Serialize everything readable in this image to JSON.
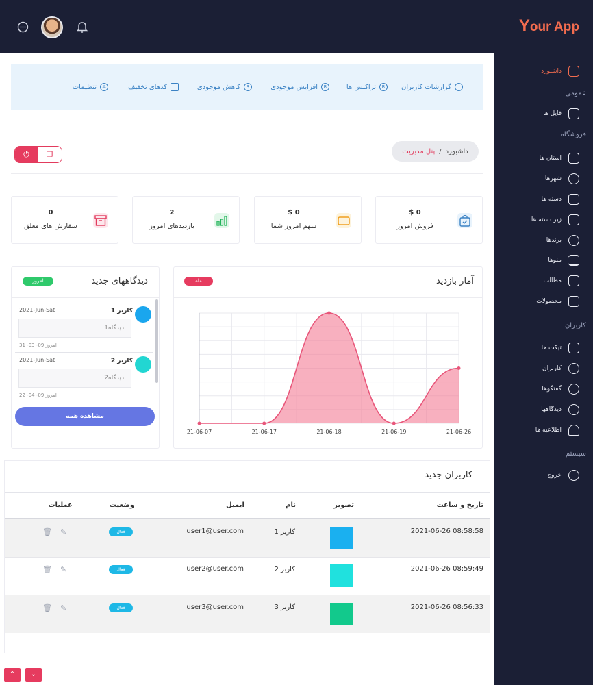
{
  "app": {
    "logo_initial": "Y",
    "logo_rest": "our App"
  },
  "header": {
    "chat_icon": "chat-icon",
    "bell_icon": "bell-icon"
  },
  "sidebar": {
    "items": [
      {
        "label": "داشبورد",
        "icon": "home-icon",
        "active": true
      },
      {
        "label": "فایل ها",
        "icon": "folder-icon"
      },
      {
        "label": "استان ها",
        "icon": "square-icon"
      },
      {
        "label": "شهرها",
        "icon": "pie-icon"
      },
      {
        "label": "دسته ها",
        "icon": "grid-icon"
      },
      {
        "label": "زیر دسته ها",
        "icon": "layout-icon"
      },
      {
        "label": "برندها",
        "icon": "check-circle-icon"
      },
      {
        "label": "منوها",
        "icon": "list-icon"
      },
      {
        "label": "مطالب",
        "icon": "edit-icon"
      },
      {
        "label": "محصولات",
        "icon": "puzzle-icon"
      },
      {
        "label": "تیکت ها",
        "icon": "ticket-icon"
      },
      {
        "label": "کاربران",
        "icon": "users-icon"
      },
      {
        "label": "گفتگوها",
        "icon": "chat-icon"
      },
      {
        "label": "دیدگاهها",
        "icon": "comment-icon"
      },
      {
        "label": "اطلاعیه ها",
        "icon": "bell-icon"
      },
      {
        "label": "خروج",
        "icon": "power-icon"
      }
    ],
    "sections": {
      "general": "عمومی",
      "shop": "فروشگاه",
      "users": "کاربران",
      "system": "سیستم"
    }
  },
  "topmenu": [
    {
      "label": "گزارشات کاربران",
      "icon": "bug-icon"
    },
    {
      "label": "تراکنش ها",
      "icon": "r-icon"
    },
    {
      "label": "افزایش موجودی",
      "icon": "r-icon"
    },
    {
      "label": "کاهش موجودی",
      "icon": "r-icon"
    },
    {
      "label": "کدهای تخفیف",
      "icon": "monitor-icon"
    },
    {
      "label": "تنظیمات",
      "icon": "gear-icon"
    }
  ],
  "breadcrumb": {
    "current": "پنل مدیریت",
    "separator": "/",
    "page": "داشبورد"
  },
  "stats": [
    {
      "value": "$ 0",
      "label": "فروش امروز",
      "icon": "bag-icon"
    },
    {
      "value": "$ 0",
      "label": "سهم امروز شما",
      "icon": "wallet-icon"
    },
    {
      "value": "2",
      "label": "بازدیدهای امروز",
      "icon": "bars-icon"
    },
    {
      "value": "0",
      "label": "سفارش های معلق",
      "icon": "archive-icon"
    }
  ],
  "visits": {
    "title": "آمار بازدید",
    "pill": "ماه"
  },
  "chart_data": {
    "type": "area",
    "categories": [
      "21-06-07",
      "21-06-17",
      "21-06-18",
      "21-06-19",
      "21-06-26"
    ],
    "values": [
      0,
      0,
      100,
      0,
      50
    ],
    "ylim": [
      0,
      100
    ],
    "grid": true,
    "color": "#f47b94"
  },
  "comments": {
    "title": "دیدگاههای جدید",
    "pill": "امروز",
    "items": [
      {
        "user": "کاربر 1",
        "date": "2021-Jun-Sat",
        "text": "دیدگاه1",
        "ago": "امروز 09- 03- 31",
        "color": "#1aa6ee"
      },
      {
        "user": "کاربر 2",
        "date": "2021-Jun-Sat",
        "text": "دیدگاه2",
        "ago": "امروز 09- 04- 22",
        "color": "#22d6d2"
      }
    ],
    "view_all": "مشاهده همه"
  },
  "users": {
    "title": "کاربران جدید",
    "headers": {
      "datetime": "تاریخ و ساعت",
      "image": "تصویر",
      "name": "نام",
      "email": "ایمیل",
      "status": "وضعیت",
      "actions": "عملیات"
    },
    "rows": [
      {
        "datetime": "2021-06-26 08:58:58",
        "name": "کاربر 1",
        "email": "user1@user.com",
        "status": "فعال",
        "color": "#1ab0f0"
      },
      {
        "datetime": "2021-06-26 08:59:49",
        "name": "کاربر 2",
        "email": "user2@user.com",
        "status": "فعال",
        "color": "#20e1de"
      },
      {
        "datetime": "2021-06-26 08:56:33",
        "name": "کاربر 3",
        "email": "user3@user.com",
        "status": "فعال",
        "color": "#12c98c"
      }
    ]
  }
}
